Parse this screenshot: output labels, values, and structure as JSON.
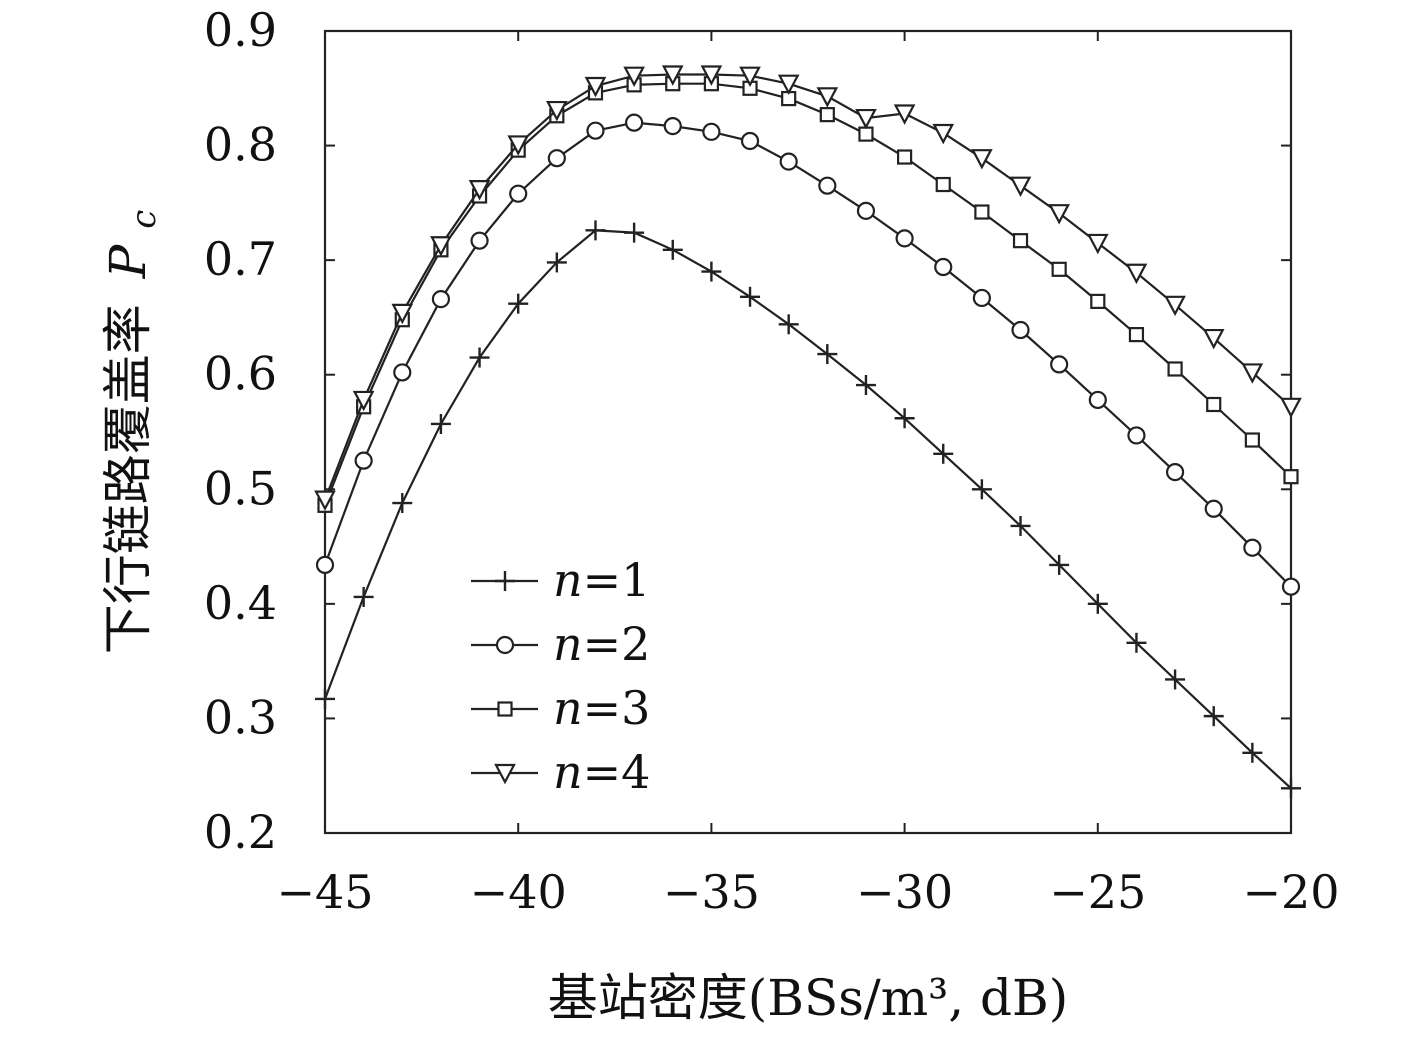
{
  "chart_data": {
    "type": "line",
    "xlabel": "基站密度(BSs/m³, dB)",
    "ylabel": "下行链路覆盖率 Pc",
    "xlim": [
      -45,
      -20
    ],
    "ylim": [
      0.2,
      0.9
    ],
    "xticks": [
      -45,
      -40,
      -35,
      -30,
      -25,
      -20
    ],
    "xtick_labels": [
      "−45",
      "−40",
      "−35",
      "−30",
      "−25",
      "−20"
    ],
    "yticks": [
      0.2,
      0.3,
      0.4,
      0.5,
      0.6,
      0.7,
      0.8,
      0.9
    ],
    "ytick_labels": [
      "0.2",
      "0.3",
      "0.4",
      "0.5",
      "0.6",
      "0.7",
      "0.8",
      "0.9"
    ],
    "grid": false,
    "legend_position": "lower-left",
    "x": [
      -45,
      -44,
      -43,
      -42,
      -41,
      -40,
      -39,
      -38,
      -37,
      -36,
      -35,
      -34,
      -33,
      -32,
      -31,
      -30,
      -29,
      -28,
      -27,
      -26,
      -25,
      -24,
      -23,
      -22,
      -21,
      -20
    ],
    "series": [
      {
        "name": "n=1",
        "marker": "plus",
        "values": [
          0.317,
          0.406,
          0.488,
          0.557,
          0.615,
          0.662,
          0.698,
          0.726,
          0.724,
          0.709,
          0.69,
          0.668,
          0.644,
          0.618,
          0.591,
          0.562,
          0.531,
          0.5,
          0.468,
          0.434,
          0.4,
          0.366,
          0.334,
          0.302,
          0.27,
          0.239
        ]
      },
      {
        "name": "n=2",
        "marker": "circle",
        "values": [
          0.434,
          0.525,
          0.602,
          0.666,
          0.717,
          0.758,
          0.789,
          0.813,
          0.82,
          0.817,
          0.812,
          0.804,
          0.786,
          0.765,
          0.743,
          0.719,
          0.694,
          0.667,
          0.639,
          0.609,
          0.578,
          0.547,
          0.515,
          0.483,
          0.449,
          0.415
        ]
      },
      {
        "name": "n=3",
        "marker": "square",
        "values": [
          0.486,
          0.572,
          0.648,
          0.709,
          0.756,
          0.796,
          0.826,
          0.846,
          0.853,
          0.854,
          0.854,
          0.85,
          0.841,
          0.827,
          0.81,
          0.79,
          0.766,
          0.742,
          0.717,
          0.692,
          0.664,
          0.635,
          0.605,
          0.574,
          0.543,
          0.511
        ]
      },
      {
        "name": "n=4",
        "marker": "triangle-down",
        "values": [
          0.491,
          0.578,
          0.654,
          0.713,
          0.762,
          0.801,
          0.831,
          0.852,
          0.861,
          0.862,
          0.862,
          0.861,
          0.854,
          0.843,
          0.824,
          0.828,
          0.811,
          0.789,
          0.765,
          0.741,
          0.715,
          0.689,
          0.661,
          0.632,
          0.602,
          0.572
        ]
      }
    ],
    "legend_labels": [
      {
        "italic": "n",
        "rest": "=1"
      },
      {
        "italic": "n",
        "rest": "=2"
      },
      {
        "italic": "n",
        "rest": "=3"
      },
      {
        "italic": "n",
        "rest": "=4"
      }
    ]
  }
}
